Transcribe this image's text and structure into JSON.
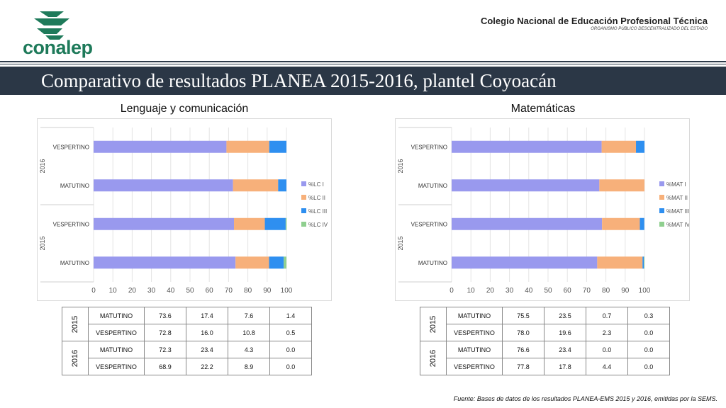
{
  "header": {
    "logo_text": "conalep",
    "institution_name": "Colegio Nacional de Educación Profesional Técnica",
    "institution_subtitle": "ORGANISMO PÚBLICO DESCENTRALIZADO DEL ESTADO",
    "title": "Comparativo de resultados PLANEA 2015-2016, plantel Coyoacán"
  },
  "colors": {
    "level1": "#9999ee",
    "level2": "#f7b07a",
    "level3": "#2e8ff0",
    "level4": "#8fcf8f",
    "title_bar": "#2b3746",
    "logo": "#1e7a5a"
  },
  "chart_data": [
    {
      "type": "bar",
      "orientation": "horizontal",
      "stacked": true,
      "title": "Lenguaje y comunicación",
      "groups": [
        {
          "year": "2015",
          "categories": [
            "MATUTINO",
            "VESPERTINO"
          ]
        },
        {
          "year": "2016",
          "categories": [
            "MATUTINO",
            "VESPERTINO"
          ]
        }
      ],
      "categories": [
        "2015 MATUTINO",
        "2015 VESPERTINO",
        "2016 MATUTINO",
        "2016 VESPERTINO"
      ],
      "series": [
        {
          "name": "%LC I",
          "values": [
            73.6,
            72.8,
            72.3,
            68.9
          ]
        },
        {
          "name": "%LC II",
          "values": [
            17.4,
            16.0,
            23.4,
            22.2
          ]
        },
        {
          "name": "%LC III",
          "values": [
            7.6,
            10.8,
            4.3,
            8.9
          ]
        },
        {
          "name": "%LC IV",
          "values": [
            1.4,
            0.5,
            0.0,
            0.0
          ]
        }
      ],
      "xlim": [
        0,
        100
      ],
      "xticks": [
        "0",
        "10",
        "20",
        "30",
        "40",
        "50",
        "60",
        "70",
        "80",
        "90",
        "100"
      ],
      "legend": "right"
    },
    {
      "type": "bar",
      "orientation": "horizontal",
      "stacked": true,
      "title": "Matemáticas",
      "groups": [
        {
          "year": "2015",
          "categories": [
            "MATUTINO",
            "VESPERTINO"
          ]
        },
        {
          "year": "2016",
          "categories": [
            "MATUTINO",
            "VESPERTINO"
          ]
        }
      ],
      "categories": [
        "2015 MATUTINO",
        "2015 VESPERTINO",
        "2016 MATUTINO",
        "2016 VESPERTINO"
      ],
      "series": [
        {
          "name": "%MAT I",
          "values": [
            75.5,
            78.0,
            76.6,
            77.8
          ]
        },
        {
          "name": "%MAT II",
          "values": [
            23.5,
            19.6,
            23.4,
            17.8
          ]
        },
        {
          "name": "%MAT III",
          "values": [
            0.7,
            2.3,
            0.0,
            4.4
          ]
        },
        {
          "name": "%MAT IV",
          "values": [
            0.3,
            0.0,
            0.0,
            0.0
          ]
        }
      ],
      "xlim": [
        0,
        100
      ],
      "xticks": [
        "0",
        "10",
        "20",
        "30",
        "40",
        "50",
        "60",
        "70",
        "80",
        "90",
        "100"
      ],
      "legend": "right"
    }
  ],
  "tables": [
    {
      "rows": [
        {
          "year": "2015",
          "shift": "MATUTINO",
          "values": [
            "73.6",
            "17.4",
            "7.6",
            "1.4"
          ]
        },
        {
          "year": "2015",
          "shift": "VESPERTINO",
          "values": [
            "72.8",
            "16.0",
            "10.8",
            "0.5"
          ]
        },
        {
          "year": "2016",
          "shift": "MATUTINO",
          "values": [
            "72.3",
            "23.4",
            "4.3",
            "0.0"
          ]
        },
        {
          "year": "2016",
          "shift": "VESPERTINO",
          "values": [
            "68.9",
            "22.2",
            "8.9",
            "0.0"
          ]
        }
      ]
    },
    {
      "rows": [
        {
          "year": "2015",
          "shift": "MATUTINO",
          "values": [
            "75.5",
            "23.5",
            "0.7",
            "0.3"
          ]
        },
        {
          "year": "2015",
          "shift": "VESPERTINO",
          "values": [
            "78.0",
            "19.6",
            "2.3",
            "0.0"
          ]
        },
        {
          "year": "2016",
          "shift": "MATUTINO",
          "values": [
            "76.6",
            "23.4",
            "0.0",
            "0.0"
          ]
        },
        {
          "year": "2016",
          "shift": "VESPERTINO",
          "values": [
            "77.8",
            "17.8",
            "4.4",
            "0.0"
          ]
        }
      ]
    }
  ],
  "footer": {
    "source": "Fuente: Bases de datos de los resultados PLANEA-EMS 2015 y 2016, emitidas por la SEMS."
  }
}
